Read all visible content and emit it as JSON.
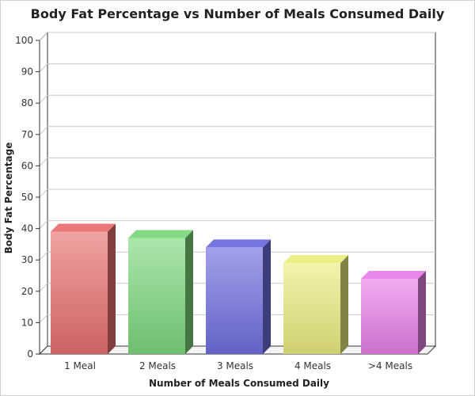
{
  "chart_data": {
    "type": "bar",
    "title": "Body Fat Percentage vs Number of Meals Consumed Daily",
    "xlabel": "Number of Meals Consumed Daily",
    "ylabel": "Body Fat Percentage",
    "categories": [
      "1 Meal",
      "2 Meals",
      "3 Meals",
      "4 Meals",
      ">4 Meals"
    ],
    "values": [
      39,
      37,
      34,
      29,
      24
    ],
    "ylim": [
      0,
      100
    ],
    "yticks": [
      0,
      10,
      20,
      30,
      40,
      50,
      60,
      70,
      80,
      90,
      100
    ],
    "grid": true,
    "legend": "none",
    "colors": [
      "#e87070",
      "#7ed87e",
      "#6f6fe0",
      "#ecec80",
      "#e880e8"
    ]
  }
}
